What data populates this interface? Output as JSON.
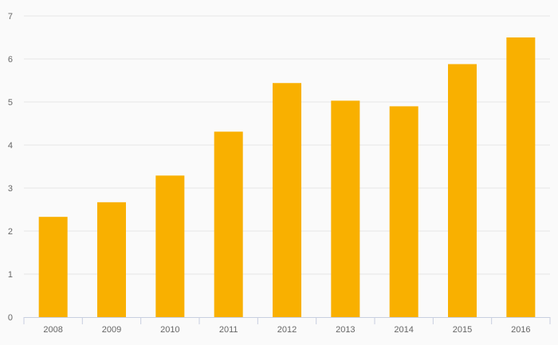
{
  "colors": {
    "background": "#fafafa",
    "bar": "#f9b000",
    "grid": "#e6e6e6",
    "axis": "#c8cfe0",
    "tick_text": "#666666"
  },
  "chart_data": {
    "type": "bar",
    "title": "",
    "xlabel": "",
    "ylabel": "",
    "categories": [
      "2008",
      "2009",
      "2010",
      "2011",
      "2012",
      "2013",
      "2014",
      "2015",
      "2016"
    ],
    "values": [
      2.33,
      2.67,
      3.29,
      4.31,
      5.44,
      5.03,
      4.9,
      5.88,
      6.5
    ],
    "ylim": [
      0,
      7
    ],
    "yticks": [
      0,
      1,
      2,
      3,
      4,
      5,
      6,
      7
    ],
    "grid": true,
    "legend": "none"
  }
}
